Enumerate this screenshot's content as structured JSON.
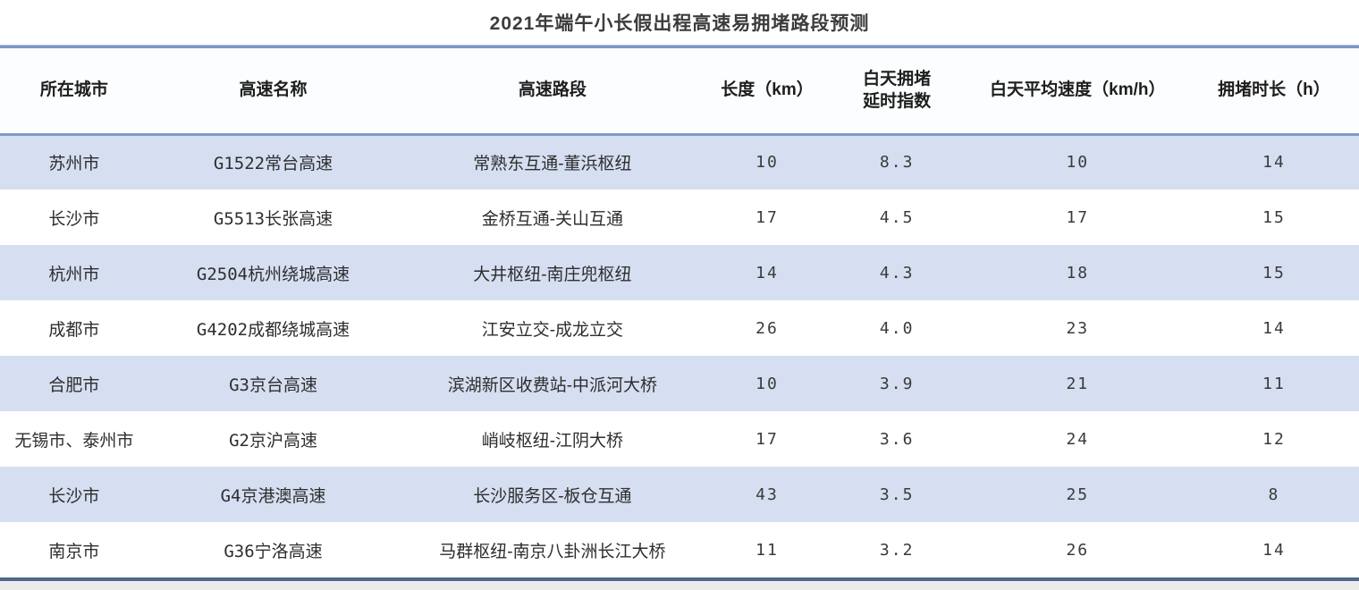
{
  "title": "2021年端午小长假出程高速易拥堵路段预测",
  "colors": {
    "stripe_row_bg": "#d5dff1",
    "header_bg": "#fbfdff",
    "top_rule": "#7e96c5",
    "header_rule": "#8199c7",
    "bottom_rule": "#50698a",
    "title_text": "#3c3c3c",
    "cell_text": "#2e2e2e"
  },
  "chart_data": {
    "type": "table",
    "title": "2021年端午小长假出程高速易拥堵路段预测",
    "columns": [
      {
        "key": "city",
        "label": "所在城市"
      },
      {
        "key": "highway",
        "label": "高速名称"
      },
      {
        "key": "section",
        "label": "高速路段"
      },
      {
        "key": "length_km",
        "label": "长度（km）"
      },
      {
        "key": "delay_index",
        "label": "白天拥堵\n延时指数"
      },
      {
        "key": "avg_speed_kmh",
        "label": "白天平均速度（km/h）"
      },
      {
        "key": "congestion_hours",
        "label": "拥堵时长（h）"
      }
    ],
    "rows": [
      {
        "city": "苏州市",
        "highway": "G1522常台高速",
        "section": "常熟东互通-董浜枢纽",
        "length_km": "10",
        "delay_index": "8.3",
        "avg_speed_kmh": "10",
        "congestion_hours": "14"
      },
      {
        "city": "长沙市",
        "highway": "G5513长张高速",
        "section": "金桥互通-关山互通",
        "length_km": "17",
        "delay_index": "4.5",
        "avg_speed_kmh": "17",
        "congestion_hours": "15"
      },
      {
        "city": "杭州市",
        "highway": "G2504杭州绕城高速",
        "section": "大井枢纽-南庄兜枢纽",
        "length_km": "14",
        "delay_index": "4.3",
        "avg_speed_kmh": "18",
        "congestion_hours": "15"
      },
      {
        "city": "成都市",
        "highway": "G4202成都绕城高速",
        "section": "江安立交-成龙立交",
        "length_km": "26",
        "delay_index": "4.0",
        "avg_speed_kmh": "23",
        "congestion_hours": "14"
      },
      {
        "city": "合肥市",
        "highway": "G3京台高速",
        "section": "滨湖新区收费站-中派河大桥",
        "length_km": "10",
        "delay_index": "3.9",
        "avg_speed_kmh": "21",
        "congestion_hours": "11"
      },
      {
        "city": "无锡市、泰州市",
        "highway": "G2京沪高速",
        "section": "峭岐枢纽-江阴大桥",
        "length_km": "17",
        "delay_index": "3.6",
        "avg_speed_kmh": "24",
        "congestion_hours": "12"
      },
      {
        "city": "长沙市",
        "highway": "G4京港澳高速",
        "section": "长沙服务区-板仓互通",
        "length_km": "43",
        "delay_index": "3.5",
        "avg_speed_kmh": "25",
        "congestion_hours": "8"
      },
      {
        "city": "南京市",
        "highway": "G36宁洛高速",
        "section": "马群枢纽-南京八卦洲长江大桥",
        "length_km": "11",
        "delay_index": "3.2",
        "avg_speed_kmh": "26",
        "congestion_hours": "14"
      }
    ]
  }
}
